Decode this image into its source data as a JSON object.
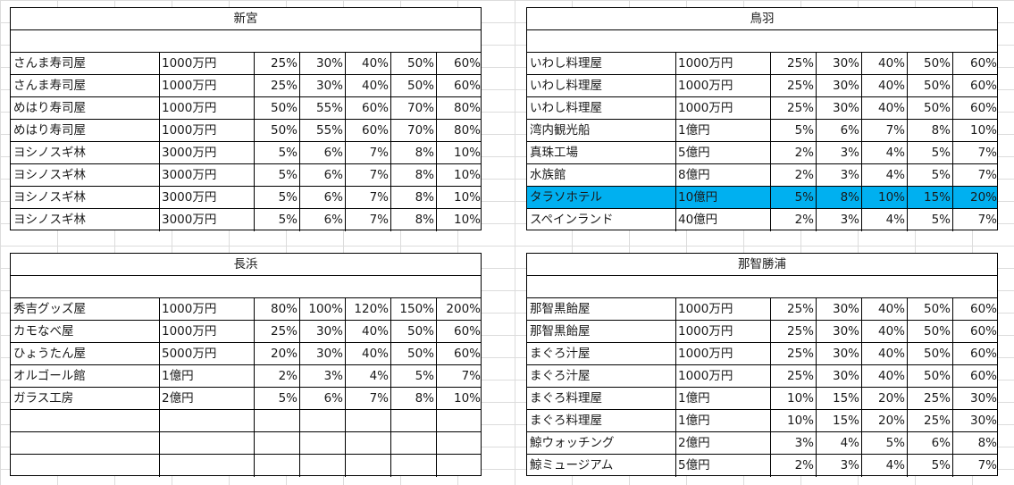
{
  "tables": [
    {
      "title": "新宮",
      "rows": [
        {
          "name": "さんま寿司屋",
          "amount": "1000万円",
          "pct": [
            "25%",
            "30%",
            "40%",
            "50%",
            "60%"
          ]
        },
        {
          "name": "さんま寿司屋",
          "amount": "1000万円",
          "pct": [
            "25%",
            "30%",
            "40%",
            "50%",
            "60%"
          ]
        },
        {
          "name": "めはり寿司屋",
          "amount": "1000万円",
          "pct": [
            "50%",
            "55%",
            "60%",
            "70%",
            "80%"
          ]
        },
        {
          "name": "めはり寿司屋",
          "amount": "1000万円",
          "pct": [
            "50%",
            "55%",
            "60%",
            "70%",
            "80%"
          ]
        },
        {
          "name": "ヨシノスギ林",
          "amount": "3000万円",
          "pct": [
            "5%",
            "6%",
            "7%",
            "8%",
            "10%"
          ]
        },
        {
          "name": "ヨシノスギ林",
          "amount": "3000万円",
          "pct": [
            "5%",
            "6%",
            "7%",
            "8%",
            "10%"
          ]
        },
        {
          "name": "ヨシノスギ林",
          "amount": "3000万円",
          "pct": [
            "5%",
            "6%",
            "7%",
            "8%",
            "10%"
          ]
        },
        {
          "name": "ヨシノスギ林",
          "amount": "3000万円",
          "pct": [
            "5%",
            "6%",
            "7%",
            "8%",
            "10%"
          ]
        }
      ]
    },
    {
      "title": "鳥羽",
      "highlight_color": "#00b0f0",
      "rows": [
        {
          "name": "いわし料理屋",
          "amount": "1000万円",
          "pct": [
            "25%",
            "30%",
            "40%",
            "50%",
            "60%"
          ]
        },
        {
          "name": "いわし料理屋",
          "amount": "1000万円",
          "pct": [
            "25%",
            "30%",
            "40%",
            "50%",
            "60%"
          ]
        },
        {
          "name": "いわし料理屋",
          "amount": "1000万円",
          "pct": [
            "25%",
            "30%",
            "40%",
            "50%",
            "60%"
          ]
        },
        {
          "name": "湾内観光船",
          "amount": "1億円",
          "pct": [
            "5%",
            "6%",
            "7%",
            "8%",
            "10%"
          ]
        },
        {
          "name": "真珠工場",
          "amount": "5億円",
          "pct": [
            "2%",
            "3%",
            "4%",
            "5%",
            "7%"
          ]
        },
        {
          "name": "水族館",
          "amount": "8億円",
          "pct": [
            "2%",
            "3%",
            "4%",
            "5%",
            "7%"
          ]
        },
        {
          "name": "タラソホテル",
          "amount": "10億円",
          "pct": [
            "5%",
            "8%",
            "10%",
            "15%",
            "20%"
          ],
          "highlighted": true
        },
        {
          "name": "スペインランド",
          "amount": "40億円",
          "pct": [
            "2%",
            "3%",
            "4%",
            "5%",
            "7%"
          ]
        }
      ]
    },
    {
      "title": "長浜",
      "rows": [
        {
          "name": "秀吉グッズ屋",
          "amount": "1000万円",
          "pct": [
            "80%",
            "100%",
            "120%",
            "150%",
            "200%"
          ]
        },
        {
          "name": "カモなべ屋",
          "amount": "1000万円",
          "pct": [
            "25%",
            "30%",
            "40%",
            "50%",
            "60%"
          ]
        },
        {
          "name": "ひょうたん屋",
          "amount": "5000万円",
          "pct": [
            "20%",
            "30%",
            "40%",
            "50%",
            "60%"
          ]
        },
        {
          "name": "オルゴール館",
          "amount": "1億円",
          "pct": [
            "2%",
            "3%",
            "4%",
            "5%",
            "7%"
          ]
        },
        {
          "name": "ガラス工房",
          "amount": "2億円",
          "pct": [
            "5%",
            "6%",
            "7%",
            "8%",
            "10%"
          ]
        },
        {
          "name": "",
          "amount": "",
          "pct": [
            "",
            "",
            "",
            "",
            ""
          ]
        },
        {
          "name": "",
          "amount": "",
          "pct": [
            "",
            "",
            "",
            "",
            ""
          ]
        },
        {
          "name": "",
          "amount": "",
          "pct": [
            "",
            "",
            "",
            "",
            ""
          ]
        }
      ]
    },
    {
      "title": "那智勝浦",
      "rows": [
        {
          "name": "那智黒飴屋",
          "amount": "1000万円",
          "pct": [
            "25%",
            "30%",
            "40%",
            "50%",
            "60%"
          ]
        },
        {
          "name": "那智黒飴屋",
          "amount": "1000万円",
          "pct": [
            "25%",
            "30%",
            "40%",
            "50%",
            "60%"
          ]
        },
        {
          "name": "まぐろ汁屋",
          "amount": "1000万円",
          "pct": [
            "25%",
            "30%",
            "40%",
            "50%",
            "60%"
          ]
        },
        {
          "name": "まぐろ汁屋",
          "amount": "1000万円",
          "pct": [
            "25%",
            "30%",
            "40%",
            "50%",
            "60%"
          ]
        },
        {
          "name": "まぐろ料理屋",
          "amount": "1億円",
          "pct": [
            "10%",
            "15%",
            "20%",
            "25%",
            "30%"
          ]
        },
        {
          "name": "まぐろ料理屋",
          "amount": "1億円",
          "pct": [
            "10%",
            "15%",
            "20%",
            "25%",
            "30%"
          ]
        },
        {
          "name": "鯨ウォッチング",
          "amount": "2億円",
          "pct": [
            "3%",
            "4%",
            "5%",
            "6%",
            "8%"
          ]
        },
        {
          "name": "鯨ミュージアム",
          "amount": "5億円",
          "pct": [
            "2%",
            "3%",
            "4%",
            "5%",
            "7%"
          ]
        }
      ]
    }
  ]
}
